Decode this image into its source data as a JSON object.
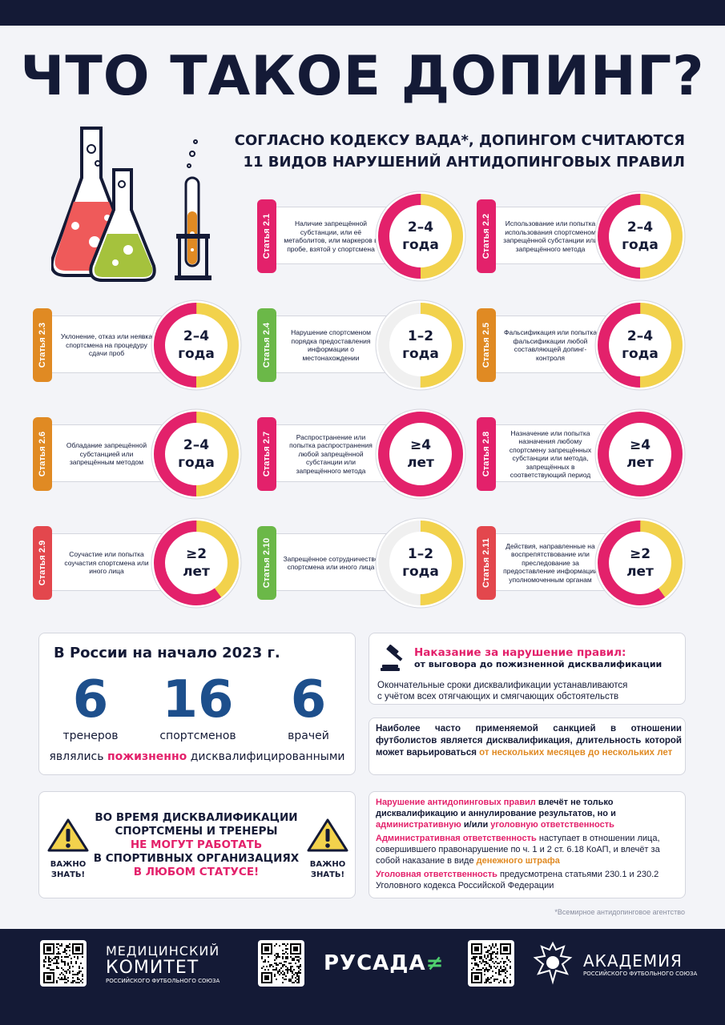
{
  "title": "ЧТО ТАКОЕ ДОПИНГ?",
  "subtitle": {
    "line1": "СОГЛАСНО КОДЕКСУ ВАДА*, ДОПИНГОМ СЧИТАЮТСЯ",
    "line2": "11 ВИДОВ НАРУШЕНИЙ АНТИДОПИНГОВЫХ ПРАВИЛ"
  },
  "colors": {
    "navy": "#141a36",
    "pink": "#e3216b",
    "yellow": "#f2d24c",
    "orange": "#e08a23",
    "red": "#e3474d",
    "green": "#6bb848",
    "track": "#f0f0f0"
  },
  "articles": [
    {
      "label": "Статья 2.1",
      "tab_color": "#e3216b",
      "desc": "Наличие запрещённой субстанции, или её метаболитов, или маркеров в пробе, взятой у спортсмена",
      "dur1": "2–4",
      "dur2": "года",
      "pink_fraction": 0.5,
      "yellow_fraction": 0.5
    },
    {
      "label": "Статья 2.2",
      "tab_color": "#e3216b",
      "desc": "Использование или попытка использования спортсменом запрещённой субстанции или запрещённого метода",
      "dur1": "2–4",
      "dur2": "года",
      "pink_fraction": 0.5,
      "yellow_fraction": 0.5
    },
    {
      "label": "Статья 2.3",
      "tab_color": "#e08a23",
      "desc": "Уклонение, отказ или неявка спортсмена на процедуру сдачи проб",
      "dur1": "2–4",
      "dur2": "года",
      "pink_fraction": 0.5,
      "yellow_fraction": 0.5
    },
    {
      "label": "Статья 2.4",
      "tab_color": "#6bb848",
      "desc": "Нарушение спортсменом порядка предоставления информации о местонахождении",
      "dur1": "1–2",
      "dur2": "года",
      "pink_fraction": 0,
      "yellow_fraction": 0.5
    },
    {
      "label": "Статья 2.5",
      "tab_color": "#e08a23",
      "desc": "Фальсификация или попытка фальсификации любой составляющей допинг-контроля",
      "dur1": "2–4",
      "dur2": "года",
      "pink_fraction": 0.5,
      "yellow_fraction": 0.5
    },
    {
      "label": "Статья 2.6",
      "tab_color": "#e08a23",
      "desc": "Обладание запрещённой субстанцией или запрещённым методом",
      "dur1": "2–4",
      "dur2": "года",
      "pink_fraction": 0.5,
      "yellow_fraction": 0.5
    },
    {
      "label": "Статья 2.7",
      "tab_color": "#e3216b",
      "desc": "Распространение или попытка распространения любой запрещённой субстанции или запрещённого метода",
      "dur1": "≥4",
      "dur2": "лет",
      "pink_fraction": 1,
      "yellow_fraction": 0
    },
    {
      "label": "Статья 2.8",
      "tab_color": "#e3216b",
      "desc": "Назначение или попытка назначения любому спортсмену запрещённых субстанции или метода, запрещённых в соответствующий период",
      "dur1": "≥4",
      "dur2": "лет",
      "pink_fraction": 1,
      "yellow_fraction": 0
    },
    {
      "label": "Статья 2.9",
      "tab_color": "#e3474d",
      "desc": "Соучастие или попытка соучастия спортсмена или иного лица",
      "dur1": "≥2",
      "dur2": "лет",
      "pink_fraction": 0.6,
      "yellow_fraction": 0.4
    },
    {
      "label": "Статья 2.10",
      "tab_color": "#6bb848",
      "desc": "Запрещённое сотрудничество спортсмена или иного лица",
      "dur1": "1–2",
      "dur2": "года",
      "pink_fraction": 0,
      "yellow_fraction": 0.5
    },
    {
      "label": "Статья 2.11",
      "tab_color": "#e3474d",
      "desc": "Действия, направленные на воспрепятствование или преследование за предоставление информации уполномоченным органам",
      "dur1": "≥2",
      "dur2": "лет",
      "pink_fraction": 0.6,
      "yellow_fraction": 0.4
    }
  ],
  "russia": {
    "title": "В России на начало 2023 г.",
    "stats": [
      {
        "num": "6",
        "label": "тренеров"
      },
      {
        "num": "16",
        "label": "спортсменов"
      },
      {
        "num": "6",
        "label": "врачей"
      }
    ],
    "foot_pre": "являлись ",
    "foot_hl": "пожизненно",
    "foot_post": " дисквалифицированными"
  },
  "warning": {
    "label1": "ВАЖНО",
    "label2": "ЗНАТЬ!",
    "line1": "ВО ВРЕМЯ ДИСКВАЛИФИКАЦИИ",
    "line2": "СПОРТСМЕНЫ И ТРЕНЕРЫ",
    "line3": "НЕ МОГУТ РАБОТАТЬ",
    "line4": "В СПОРТИВНЫХ ОРГАНИЗАЦИЯХ",
    "line5": "В ЛЮБОМ СТАТУСЕ!"
  },
  "penalty": {
    "title": "Наказание за нарушение правил:",
    "sub": "от выговора до пожизненной дисквалификации",
    "text1": "Окончательные сроки дисквалификации устанавливаются",
    "text2": "с учётом всех отягчающих и смягчающих обстоятельств"
  },
  "sanction": {
    "text": "Наиболее часто применяемой санкцией в отношении футболистов является дисквалификация, длительность которой может варьироваться ",
    "hl": "от нескольких месяцев до нескольких лет"
  },
  "liability": {
    "p1_hl": "Нарушение антидопинговых правил",
    "p1_a": " влечёт не только дисквалификацию и аннулирование результатов, но и ",
    "p1_hl2": "административную",
    "p1_b": " и/или ",
    "p1_hl3": "уголовную ответственность",
    "p2_hl": "Административная ответственность",
    "p2_a": " наступает в отношении лица, совершившего правонарушение по ч. 1 и 2 ст. 6.18 КоАП, и влечёт за собой наказание в виде ",
    "p2_hl2": "денежного штрафа",
    "p3_hl": "Уголовная ответственность",
    "p3_a": " предусмотрена статьями 230.1 и 230.2 Уголовного кодекса Российской Федерации"
  },
  "footnote": "*Всемирное антидопинговое агентство",
  "footer": {
    "med1": "МЕДИЦИНСКИЙ",
    "med2": "КОМИТЕТ",
    "med3": "РОССИЙСКОГО ФУТБОЛЬНОГО СОЮЗА",
    "rusada": "РУСАДА",
    "acad1": "АКАДЕМИЯ",
    "acad2": "РОССИЙСКОГО ФУТБОЛЬНОГО СОЮЗА"
  }
}
